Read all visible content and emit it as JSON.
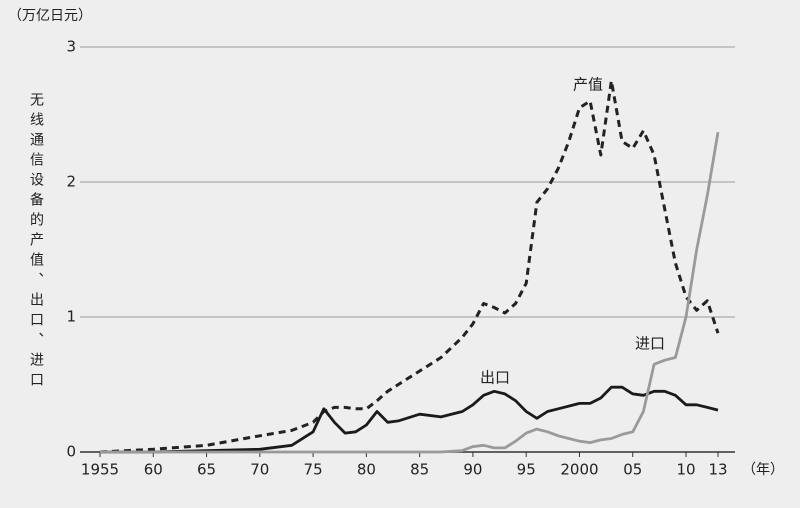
{
  "chart_data": {
    "type": "line",
    "y_unit_label": "（万亿日元）",
    "x_unit_label": "（年）",
    "ylabel": "无线通信设备的产值、出口、进口",
    "x": [
      1955,
      1960,
      1965,
      1970,
      1973,
      1975,
      1976,
      1977,
      1978,
      1979,
      1980,
      1981,
      1982,
      1983,
      1985,
      1987,
      1989,
      1990,
      1991,
      1992,
      1993,
      1994,
      1995,
      1996,
      1997,
      1998,
      1999,
      2000,
      2001,
      2002,
      2003,
      2004,
      2005,
      2006,
      2007,
      2008,
      2009,
      2010,
      2011,
      2012,
      2013
    ],
    "series": [
      {
        "name": "产值",
        "color": "#222222",
        "dashed": true,
        "values": [
          0,
          0.02,
          0.05,
          0.12,
          0.16,
          0.22,
          0.3,
          0.33,
          0.33,
          0.32,
          0.32,
          0.38,
          0.45,
          0.5,
          0.6,
          0.7,
          0.85,
          0.95,
          1.1,
          1.07,
          1.03,
          1.1,
          1.25,
          1.85,
          1.95,
          2.1,
          2.3,
          2.55,
          2.6,
          2.2,
          2.75,
          2.3,
          2.25,
          2.38,
          2.2,
          1.8,
          1.4,
          1.15,
          1.05,
          1.12,
          0.88
        ]
      },
      {
        "name": "出口",
        "color": "#1a1a1a",
        "dashed": false,
        "values": [
          0,
          0,
          0.01,
          0.02,
          0.05,
          0.15,
          0.32,
          0.22,
          0.14,
          0.15,
          0.2,
          0.3,
          0.22,
          0.23,
          0.28,
          0.26,
          0.3,
          0.35,
          0.42,
          0.45,
          0.43,
          0.38,
          0.3,
          0.25,
          0.3,
          0.32,
          0.34,
          0.36,
          0.36,
          0.4,
          0.48,
          0.48,
          0.43,
          0.42,
          0.45,
          0.45,
          0.42,
          0.35,
          0.35,
          0.33,
          0.31
        ]
      },
      {
        "name": "进口",
        "color": "#9a9a9a",
        "dashed": false,
        "values": [
          0,
          0,
          0,
          0,
          0,
          0,
          0,
          0,
          0,
          0,
          0,
          0,
          0,
          0,
          0,
          0,
          0.01,
          0.04,
          0.05,
          0.03,
          0.03,
          0.08,
          0.14,
          0.17,
          0.15,
          0.12,
          0.1,
          0.08,
          0.07,
          0.09,
          0.1,
          0.13,
          0.15,
          0.3,
          0.65,
          0.68,
          0.7,
          1.0,
          1.5,
          1.9,
          2.37
        ]
      }
    ],
    "xlim": [
      1955,
      2013
    ],
    "xticks": [
      1955,
      {
        "value": 1960,
        "label": "60"
      },
      {
        "value": 1965,
        "label": "65"
      },
      {
        "value": 1970,
        "label": "70"
      },
      {
        "value": 1975,
        "label": "75"
      },
      {
        "value": 1980,
        "label": "80"
      },
      {
        "value": 1985,
        "label": "85"
      },
      {
        "value": 1990,
        "label": "90"
      },
      {
        "value": 1995,
        "label": "95"
      },
      2000,
      {
        "value": 2005,
        "label": "05"
      },
      {
        "value": 2010,
        "label": "10"
      },
      {
        "value": 2013,
        "label": "13"
      }
    ],
    "ylim": [
      0,
      3
    ],
    "yticks": [
      0,
      1,
      2,
      3
    ],
    "grid": true
  }
}
